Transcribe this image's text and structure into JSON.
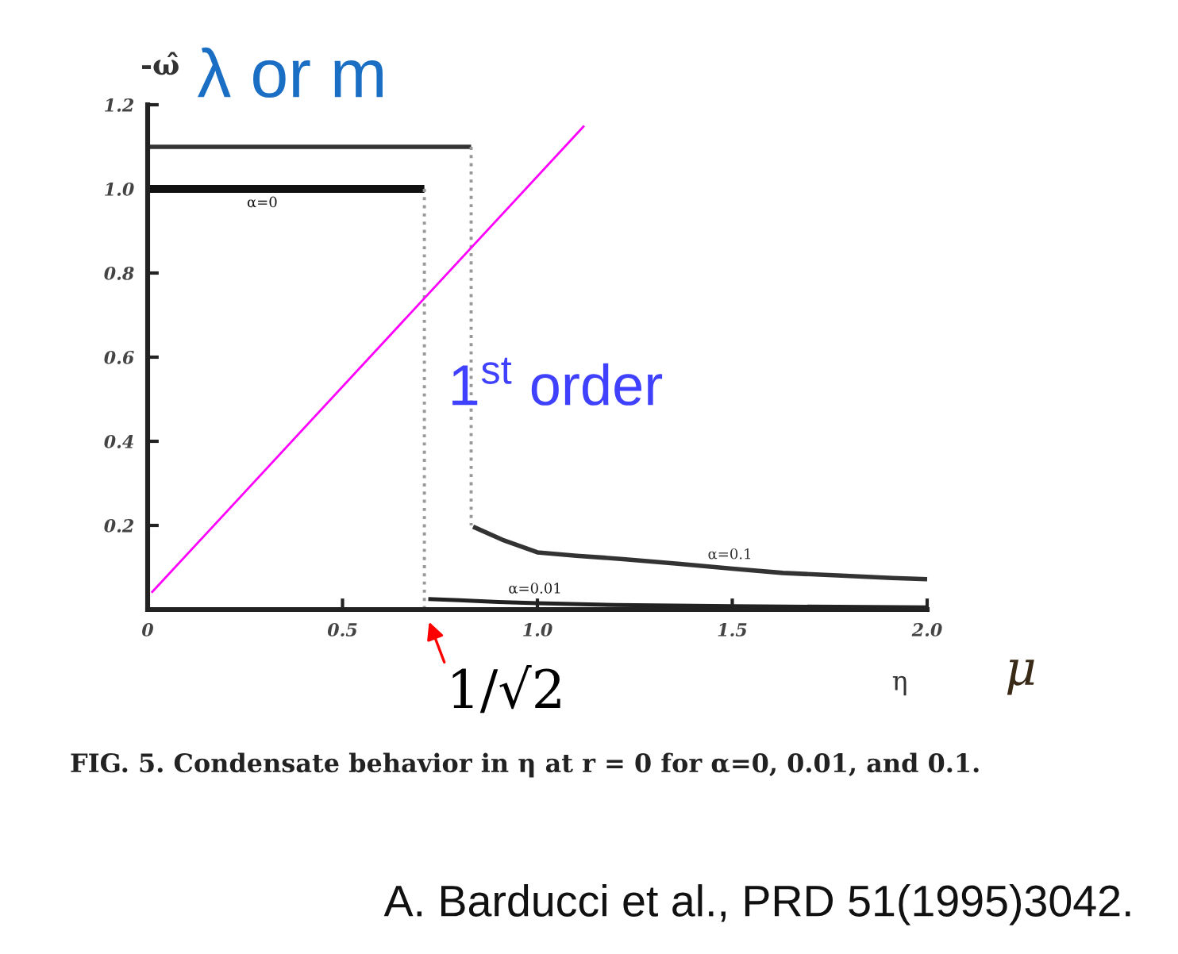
{
  "chart_data": {
    "type": "line",
    "ylabel": "-ω̂",
    "xlabel": "η",
    "xlim": [
      0,
      2.0
    ],
    "xticks": [
      0,
      0.5,
      {
        "value": 1,
        "label": "1.0"
      },
      1.5,
      {
        "value": 2,
        "label": "2.0"
      }
    ],
    "ylim": [
      0,
      1.2
    ],
    "yticks": [
      0.2,
      0.4,
      0.6,
      0.8,
      {
        "value": 1,
        "label": "1.0"
      },
      1.2
    ],
    "grid": false,
    "legend": false,
    "series": [
      {
        "name": "α=0",
        "color": "#111111",
        "x": [
          0,
          0.71
        ],
        "values": [
          1.0,
          1.0
        ]
      },
      {
        "name": "α=0.01",
        "color": "#222222",
        "x": [
          0.72,
          0.8,
          0.9,
          1.0,
          1.2,
          1.5,
          2.0
        ],
        "values": [
          0.025,
          0.022,
          0.018,
          0.015,
          0.011,
          0.008,
          0.005
        ]
      },
      {
        "name": "α=0.1",
        "color": "#333333",
        "x": [
          0.835,
          0.91,
          1.0,
          1.1,
          1.22,
          1.36,
          1.5,
          1.63,
          1.77,
          1.91,
          2.0
        ],
        "values": [
          0.197,
          0.166,
          0.136,
          0.128,
          0.12,
          0.109,
          0.097,
          0.087,
          0.081,
          0.075,
          0.072
        ]
      },
      {
        "color": "#333333",
        "x": [
          0,
          0.83
        ],
        "values": [
          1.1,
          1.1
        ]
      },
      {
        "color": "#999999",
        "line_style": "dotted",
        "x": [
          0.71,
          0.71
        ],
        "values": [
          1.0,
          0
        ]
      },
      {
        "color": "#999999",
        "line_style": "dotted",
        "x": [
          0.83,
          0.83
        ],
        "values": [
          1.1,
          0.2
        ]
      },
      {
        "color": "#ff00ff",
        "x": [
          0.01,
          1.12
        ],
        "values": [
          0.04,
          1.15
        ]
      }
    ],
    "annotations": [
      "λ or m",
      "1$^{st}$ order",
      {
        "text": "1/√2",
        "x": 0.71,
        "y": 0
      },
      "μ",
      "FIG. 5. Condensate behavior in η at r = 0 for α=0, 0.01, and 0.1.",
      "A. Barducci et al., PRD 51(1995)3042."
    ]
  }
}
